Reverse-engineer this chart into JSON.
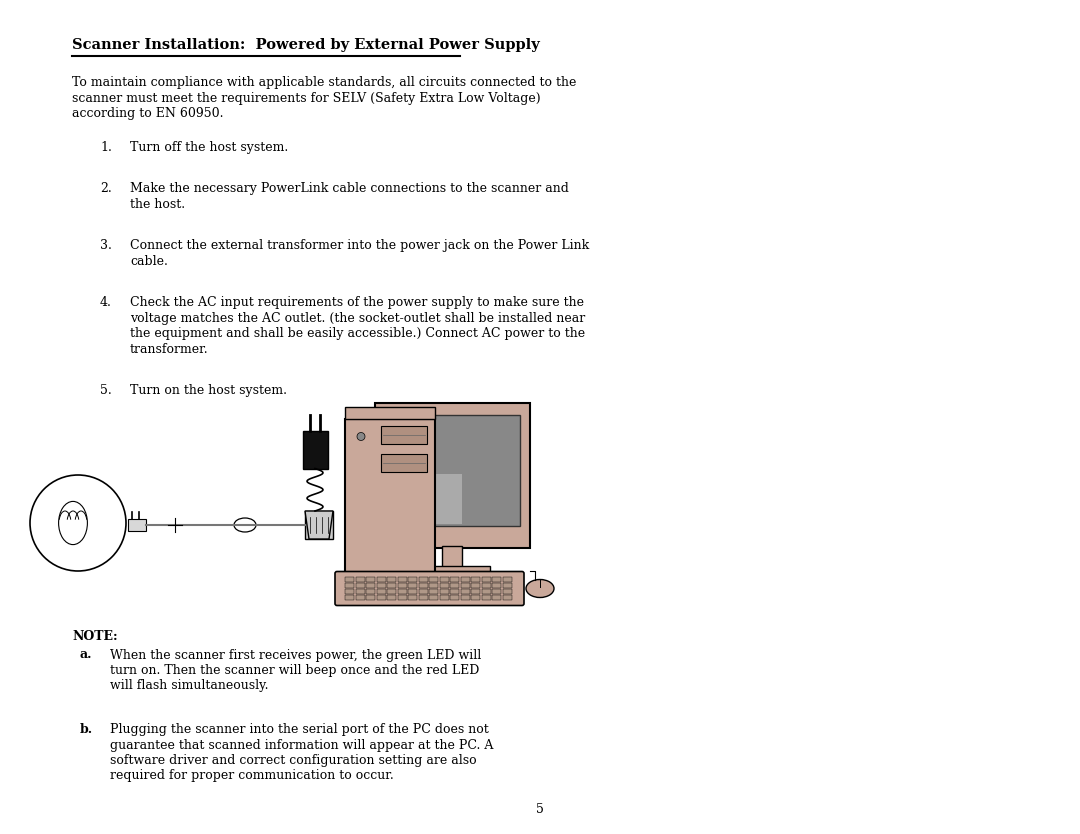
{
  "bg_color": "#ffffff",
  "title": "Scanner Installation:  Powered by External Power Supply",
  "title_fontsize": 10.5,
  "body_fontsize": 9.0,
  "paragraph_lines": [
    "To maintain compliance with applicable standards, all circuits connected to the",
    "scanner must meet the requirements for SELV (Safety Extra Low Voltage)",
    "according to EN 60950."
  ],
  "items": [
    {
      "num": "1.",
      "lines": [
        "Turn off the host system."
      ]
    },
    {
      "num": "2.",
      "lines": [
        "Make the necessary PowerLink cable connections to the scanner and",
        "the host."
      ]
    },
    {
      "num": "3.",
      "lines": [
        "Connect the external transformer into the power jack on the Power Link",
        "cable."
      ]
    },
    {
      "num": "4.",
      "lines": [
        "Check the AC input requirements of the power supply to make sure the",
        "voltage matches the AC outlet. (the socket-outlet shall be installed near",
        "the equipment and shall be easily accessible.) Connect AC power to the",
        "transformer."
      ]
    },
    {
      "num": "5.",
      "lines": [
        "Turn on the host system."
      ]
    }
  ],
  "note_label": "NOTE:",
  "note_items": [
    {
      "label": "a.",
      "lines": [
        "When the scanner first receives power, the green LED will",
        "turn on. Then the scanner will beep once and the red LED",
        "will flash simultaneously."
      ]
    },
    {
      "label": "b.",
      "lines": [
        "Plugging the scanner into the serial port of the PC does not",
        "guarantee that scanned information will appear at the PC. A",
        "software driver and correct configuration setting are also",
        "required for proper communication to occur."
      ]
    }
  ],
  "page_number": "5",
  "pc_color": "#c9a89a",
  "screen_color": "#888888",
  "screen_hl_color": "#aaaaaa",
  "adapter_color": "#1a1a1a",
  "cable_color": "#888888"
}
